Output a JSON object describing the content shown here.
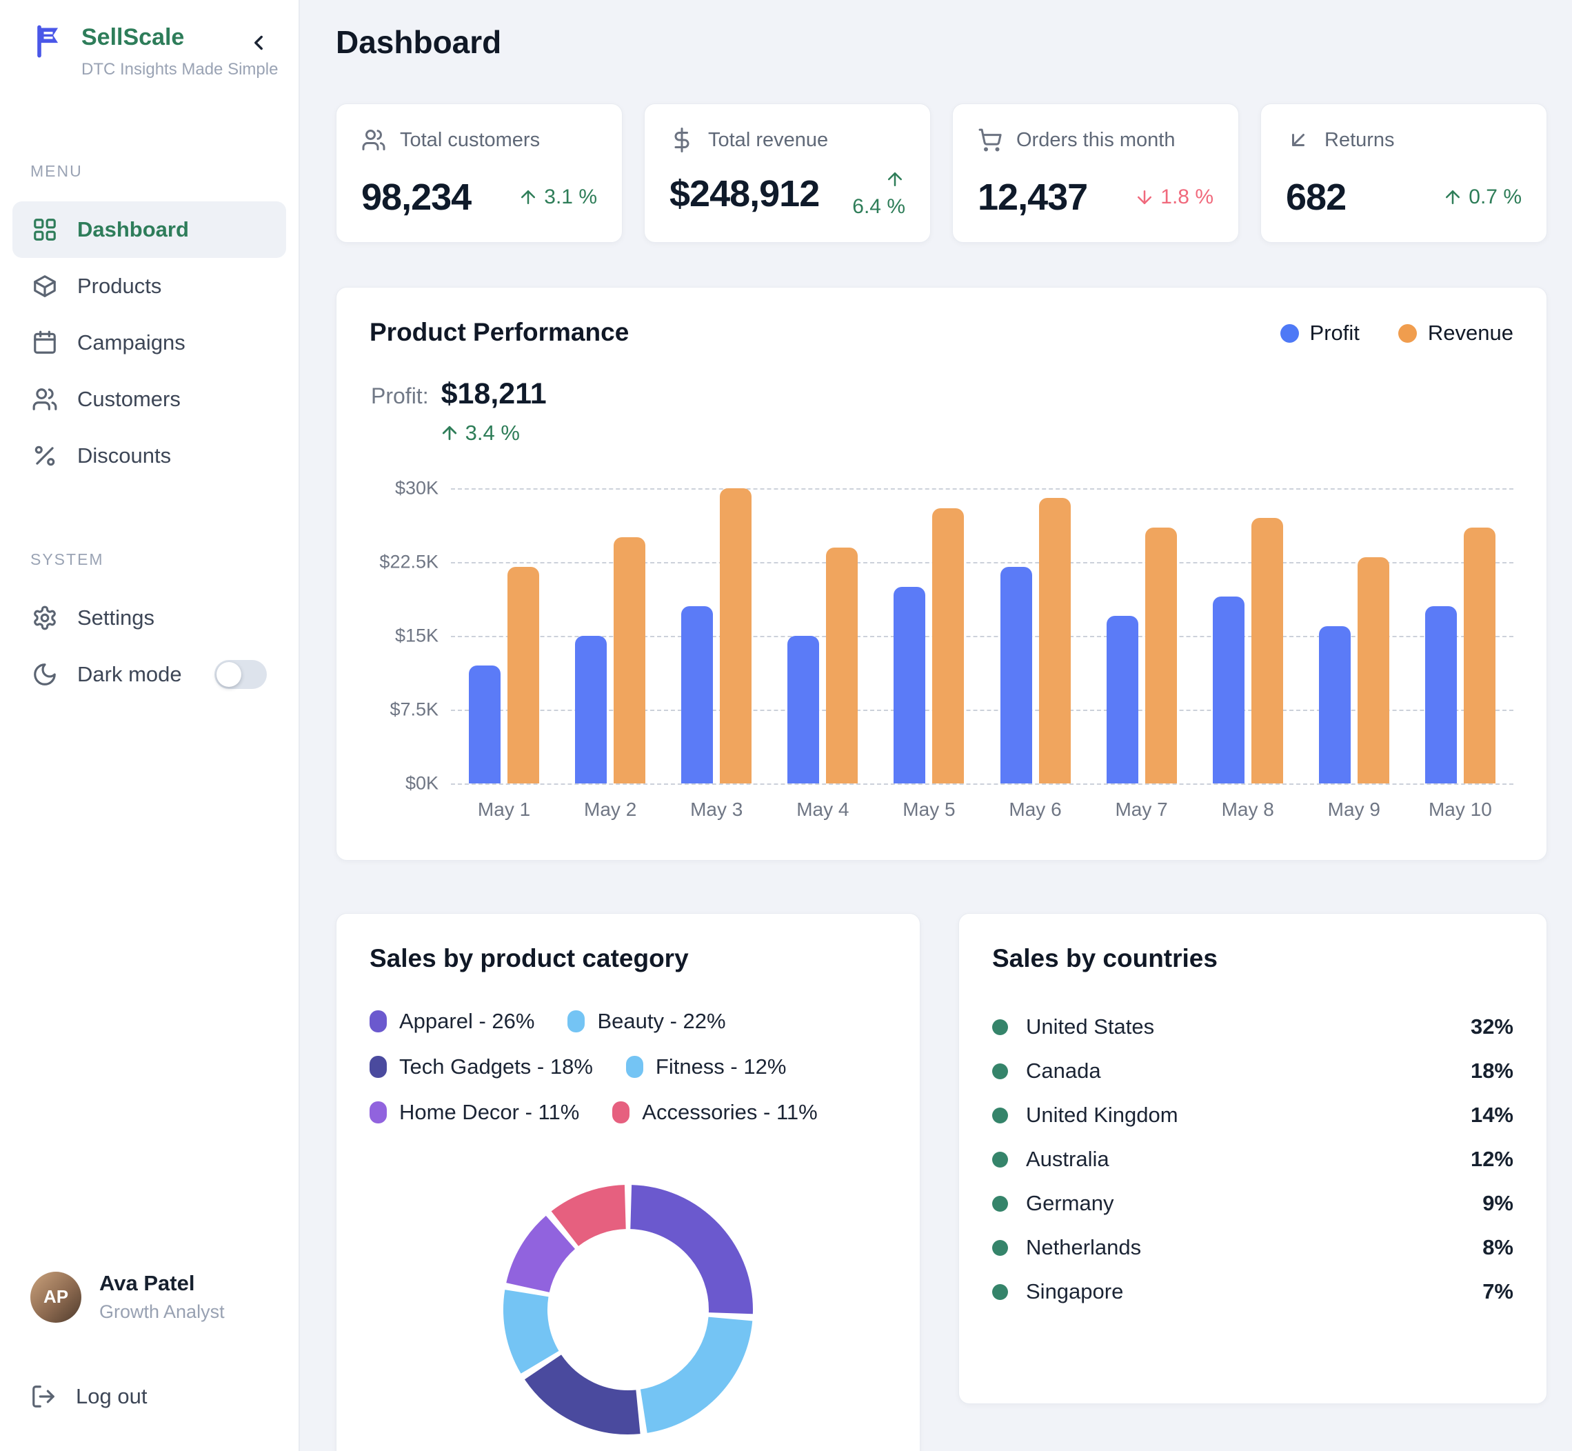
{
  "sidebar": {
    "brand": {
      "name": "SellScale",
      "tagline": "DTC Insights Made Simple",
      "logo_color": "#4a57e8"
    },
    "menu_label": "MENU",
    "menu_items": [
      {
        "label": "Dashboard",
        "icon": "dashboard-grid",
        "active": true
      },
      {
        "label": "Products",
        "icon": "package",
        "active": false
      },
      {
        "label": "Campaigns",
        "icon": "calendar",
        "active": false
      },
      {
        "label": "Customers",
        "icon": "users",
        "active": false
      },
      {
        "label": "Discounts",
        "icon": "percent",
        "active": false
      }
    ],
    "system_label": "SYSTEM",
    "system_items": [
      {
        "label": "Settings",
        "icon": "gear",
        "active": false
      }
    ],
    "dark_mode": {
      "label": "Dark mode",
      "icon": "moon",
      "enabled": false
    },
    "user": {
      "name": "Ava Patel",
      "role": "Growth Analyst",
      "initials": "AP"
    },
    "logout_label": "Log out"
  },
  "header": {
    "title": "Dashboard"
  },
  "stats": [
    {
      "label": "Total customers",
      "icon": "users",
      "value": "98,234",
      "trend": "3.1 %",
      "direction": "up"
    },
    {
      "label": "Total revenue",
      "icon": "dollar",
      "value": "$248,912",
      "trend": "6.4 %",
      "direction": "up"
    },
    {
      "label": "Orders this month",
      "icon": "cart",
      "value": "12,437",
      "trend": "1.8 %",
      "direction": "down"
    },
    {
      "label": "Returns",
      "icon": "arrow-down-left",
      "value": "682",
      "trend": "0.7 %",
      "direction": "up"
    }
  ],
  "performance": {
    "title": "Product Performance",
    "profit_label": "Profit:",
    "profit_value": "$18,211",
    "profit_trend": "3.4 %",
    "profit_trend_direction": "up",
    "legend": [
      {
        "label": "Profit",
        "color": "#4e79f6"
      },
      {
        "label": "Revenue",
        "color": "#f09d4e"
      }
    ]
  },
  "colors": {
    "up_green": "#2e7d58",
    "down_red": "#f0697c",
    "profit_bar": "#5b7bf7",
    "revenue_bar": "#f0a55e",
    "country_dot": "#35846a",
    "accent_green": "#2e7d5a",
    "logo_indigo": "#4a57e8"
  },
  "chart_data": [
    {
      "type": "bar",
      "title": "Product Performance",
      "categories": [
        "May 1",
        "May 2",
        "May 3",
        "May 4",
        "May 5",
        "May 6",
        "May 7",
        "May 8",
        "May 9",
        "May 10"
      ],
      "series": [
        {
          "name": "Profit",
          "color": "#5b7bf7",
          "values": [
            12000,
            15000,
            18000,
            15000,
            20000,
            22000,
            17000,
            19000,
            16000,
            18000
          ]
        },
        {
          "name": "Revenue",
          "color": "#f0a55e",
          "values": [
            22000,
            25000,
            30000,
            24000,
            28000,
            29000,
            26000,
            27000,
            23000,
            26000
          ]
        }
      ],
      "ylim": [
        0,
        30000
      ],
      "yticks_top_to_bottom": [
        "$30K",
        "$22.5K",
        "$15K",
        "$7.5K",
        "$0K"
      ],
      "grid": "dashed horizontal",
      "legend_position": "top-right"
    },
    {
      "type": "pie",
      "title": "Sales by product category",
      "labels": [
        "Apparel",
        "Beauty",
        "Tech Gadgets",
        "Fitness",
        "Home Decor",
        "Accessories"
      ],
      "values": [
        26,
        22,
        18,
        12,
        11,
        11
      ],
      "colors": [
        "#6b59ce",
        "#74c4f4",
        "#4a4a9e",
        "#74c4f4",
        "#9163de",
        "#e6607f"
      ],
      "donut": true,
      "legend_format": "label - value%"
    },
    {
      "type": "table",
      "title": "Sales by countries",
      "rows": [
        {
          "country": "United States",
          "value": "32%"
        },
        {
          "country": "Canada",
          "value": "18%"
        },
        {
          "country": "United Kingdom",
          "value": "14%"
        },
        {
          "country": "Australia",
          "value": "12%"
        },
        {
          "country": "Germany",
          "value": "9%"
        },
        {
          "country": "Netherlands",
          "value": "8%"
        },
        {
          "country": "Singapore",
          "value": "7%"
        }
      ]
    }
  ]
}
